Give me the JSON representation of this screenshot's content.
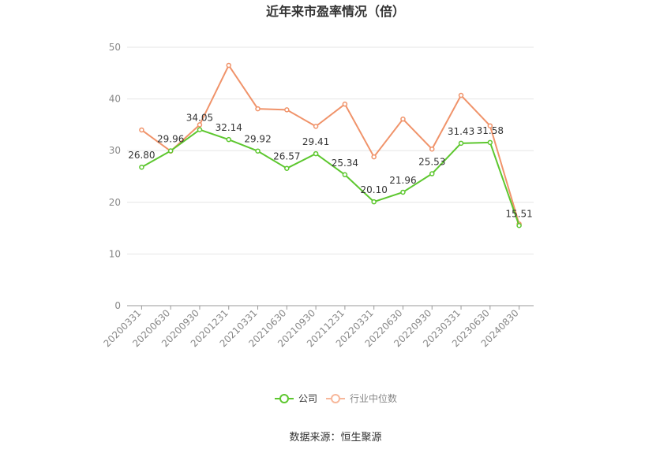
{
  "chart_data": {
    "type": "line",
    "title": "近年来市盈率情况（倍）",
    "categories": [
      "20200331",
      "20200630",
      "20200930",
      "20201231",
      "20210331",
      "20210630",
      "20210930",
      "20211231",
      "20220331",
      "20220630",
      "20220930",
      "20230331",
      "20230630",
      "20240830"
    ],
    "series": [
      {
        "name": "公司",
        "color": "#5dc72f",
        "values": [
          26.8,
          29.96,
          34.05,
          32.14,
          29.92,
          26.57,
          29.41,
          25.34,
          20.1,
          21.96,
          25.53,
          31.43,
          31.58,
          15.51
        ],
        "labels": [
          "26.80",
          "29.96",
          "34.05",
          "32.14",
          "29.92",
          "26.57",
          "29.41",
          "25.34",
          "20.10",
          "21.96",
          "25.53",
          "31.43",
          "31.58",
          "15.51"
        ]
      },
      {
        "name": "行业中位数",
        "color": "#f0936a",
        "values": [
          34.0,
          29.9,
          35.0,
          46.5,
          38.1,
          37.9,
          34.7,
          39.0,
          28.8,
          36.1,
          30.3,
          40.7,
          34.8,
          15.8
        ]
      }
    ],
    "ylim": [
      0,
      50
    ],
    "yticks": [
      0,
      10,
      20,
      30,
      40,
      50
    ],
    "grid": true,
    "legend_position": "bottom-center",
    "source": "数据来源：恒生聚源"
  }
}
